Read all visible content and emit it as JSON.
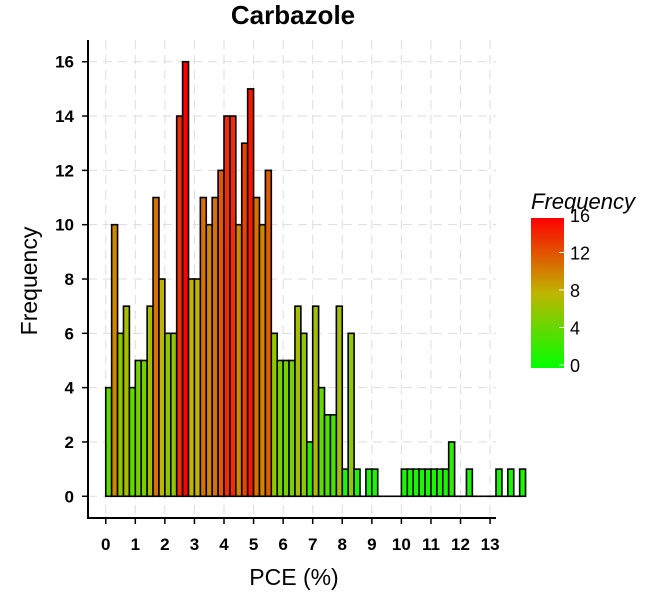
{
  "chart_data": {
    "type": "bar",
    "title": "Carbazole",
    "xlabel": "PCE (%)",
    "ylabel": "Frequency",
    "xlim": [
      -0.6,
      13.2
    ],
    "ylim": [
      -0.8,
      16.8
    ],
    "x_ticks": [
      0,
      1,
      2,
      3,
      4,
      5,
      6,
      7,
      8,
      9,
      10,
      11,
      12,
      13
    ],
    "y_ticks": [
      0,
      2,
      4,
      6,
      8,
      10,
      12,
      14,
      16
    ],
    "grid": true,
    "bin_width": 0.2,
    "bin_start": 0,
    "values": [
      4,
      10,
      6,
      7,
      4,
      5,
      5,
      7,
      11,
      8,
      6,
      6,
      14,
      16,
      8,
      8,
      11,
      10,
      11,
      12,
      14,
      14,
      10,
      13,
      15,
      11,
      10,
      12,
      6,
      5,
      5,
      5,
      7,
      6,
      2,
      7,
      4,
      3,
      3,
      7,
      1,
      6,
      1,
      0,
      1,
      1,
      0,
      0,
      0,
      0,
      1,
      1,
      1,
      1,
      1,
      1,
      1,
      1,
      2,
      0,
      0,
      1,
      0,
      0,
      0,
      0,
      1,
      0,
      1,
      0,
      1
    ],
    "colors": {
      "low": "#00ff00",
      "mid": "#bfb400",
      "high": "#ff0000"
    },
    "legend": {
      "title": "Frequency",
      "placement": "right",
      "ticks": [
        0,
        4,
        8,
        12,
        16
      ]
    }
  }
}
